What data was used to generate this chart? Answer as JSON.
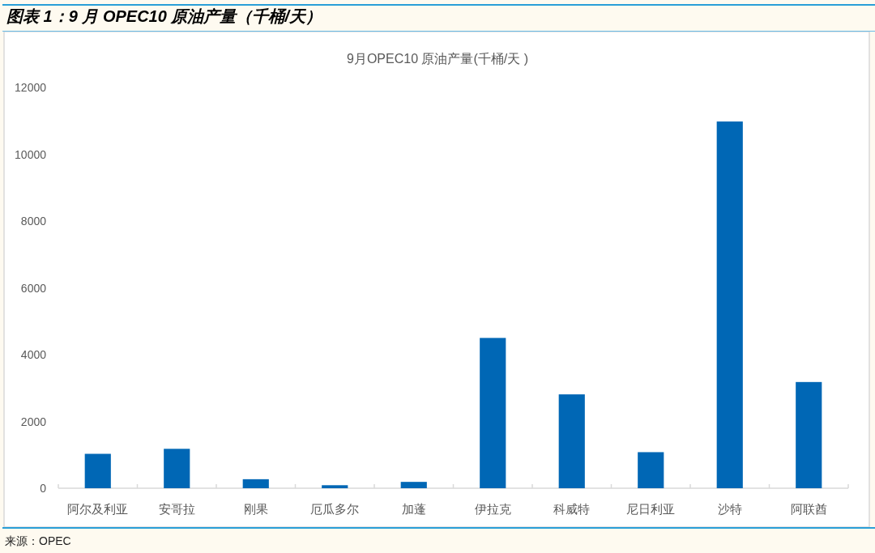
{
  "chart_data": {
    "type": "bar",
    "title": "图表 1：9 月 OPEC10 原油产量（千桶/天）",
    "subtitle": "9月OPEC10 原油产量(千桶/天 )",
    "categories": [
      "阿尔及利亚",
      "安哥拉",
      "刚果",
      "厄瓜多尔",
      "加蓬",
      "伊拉克",
      "科威特",
      "尼日利亚",
      "沙特",
      "阿联酋"
    ],
    "values": [
      1030,
      1180,
      270,
      90,
      190,
      4500,
      2810,
      1080,
      10980,
      3180
    ],
    "color": "#0067b5",
    "ylim": [
      0,
      12000
    ],
    "yticks": [
      0,
      2000,
      4000,
      6000,
      8000,
      10000,
      12000
    ],
    "annotations": [
      "来源：OPEC"
    ]
  }
}
